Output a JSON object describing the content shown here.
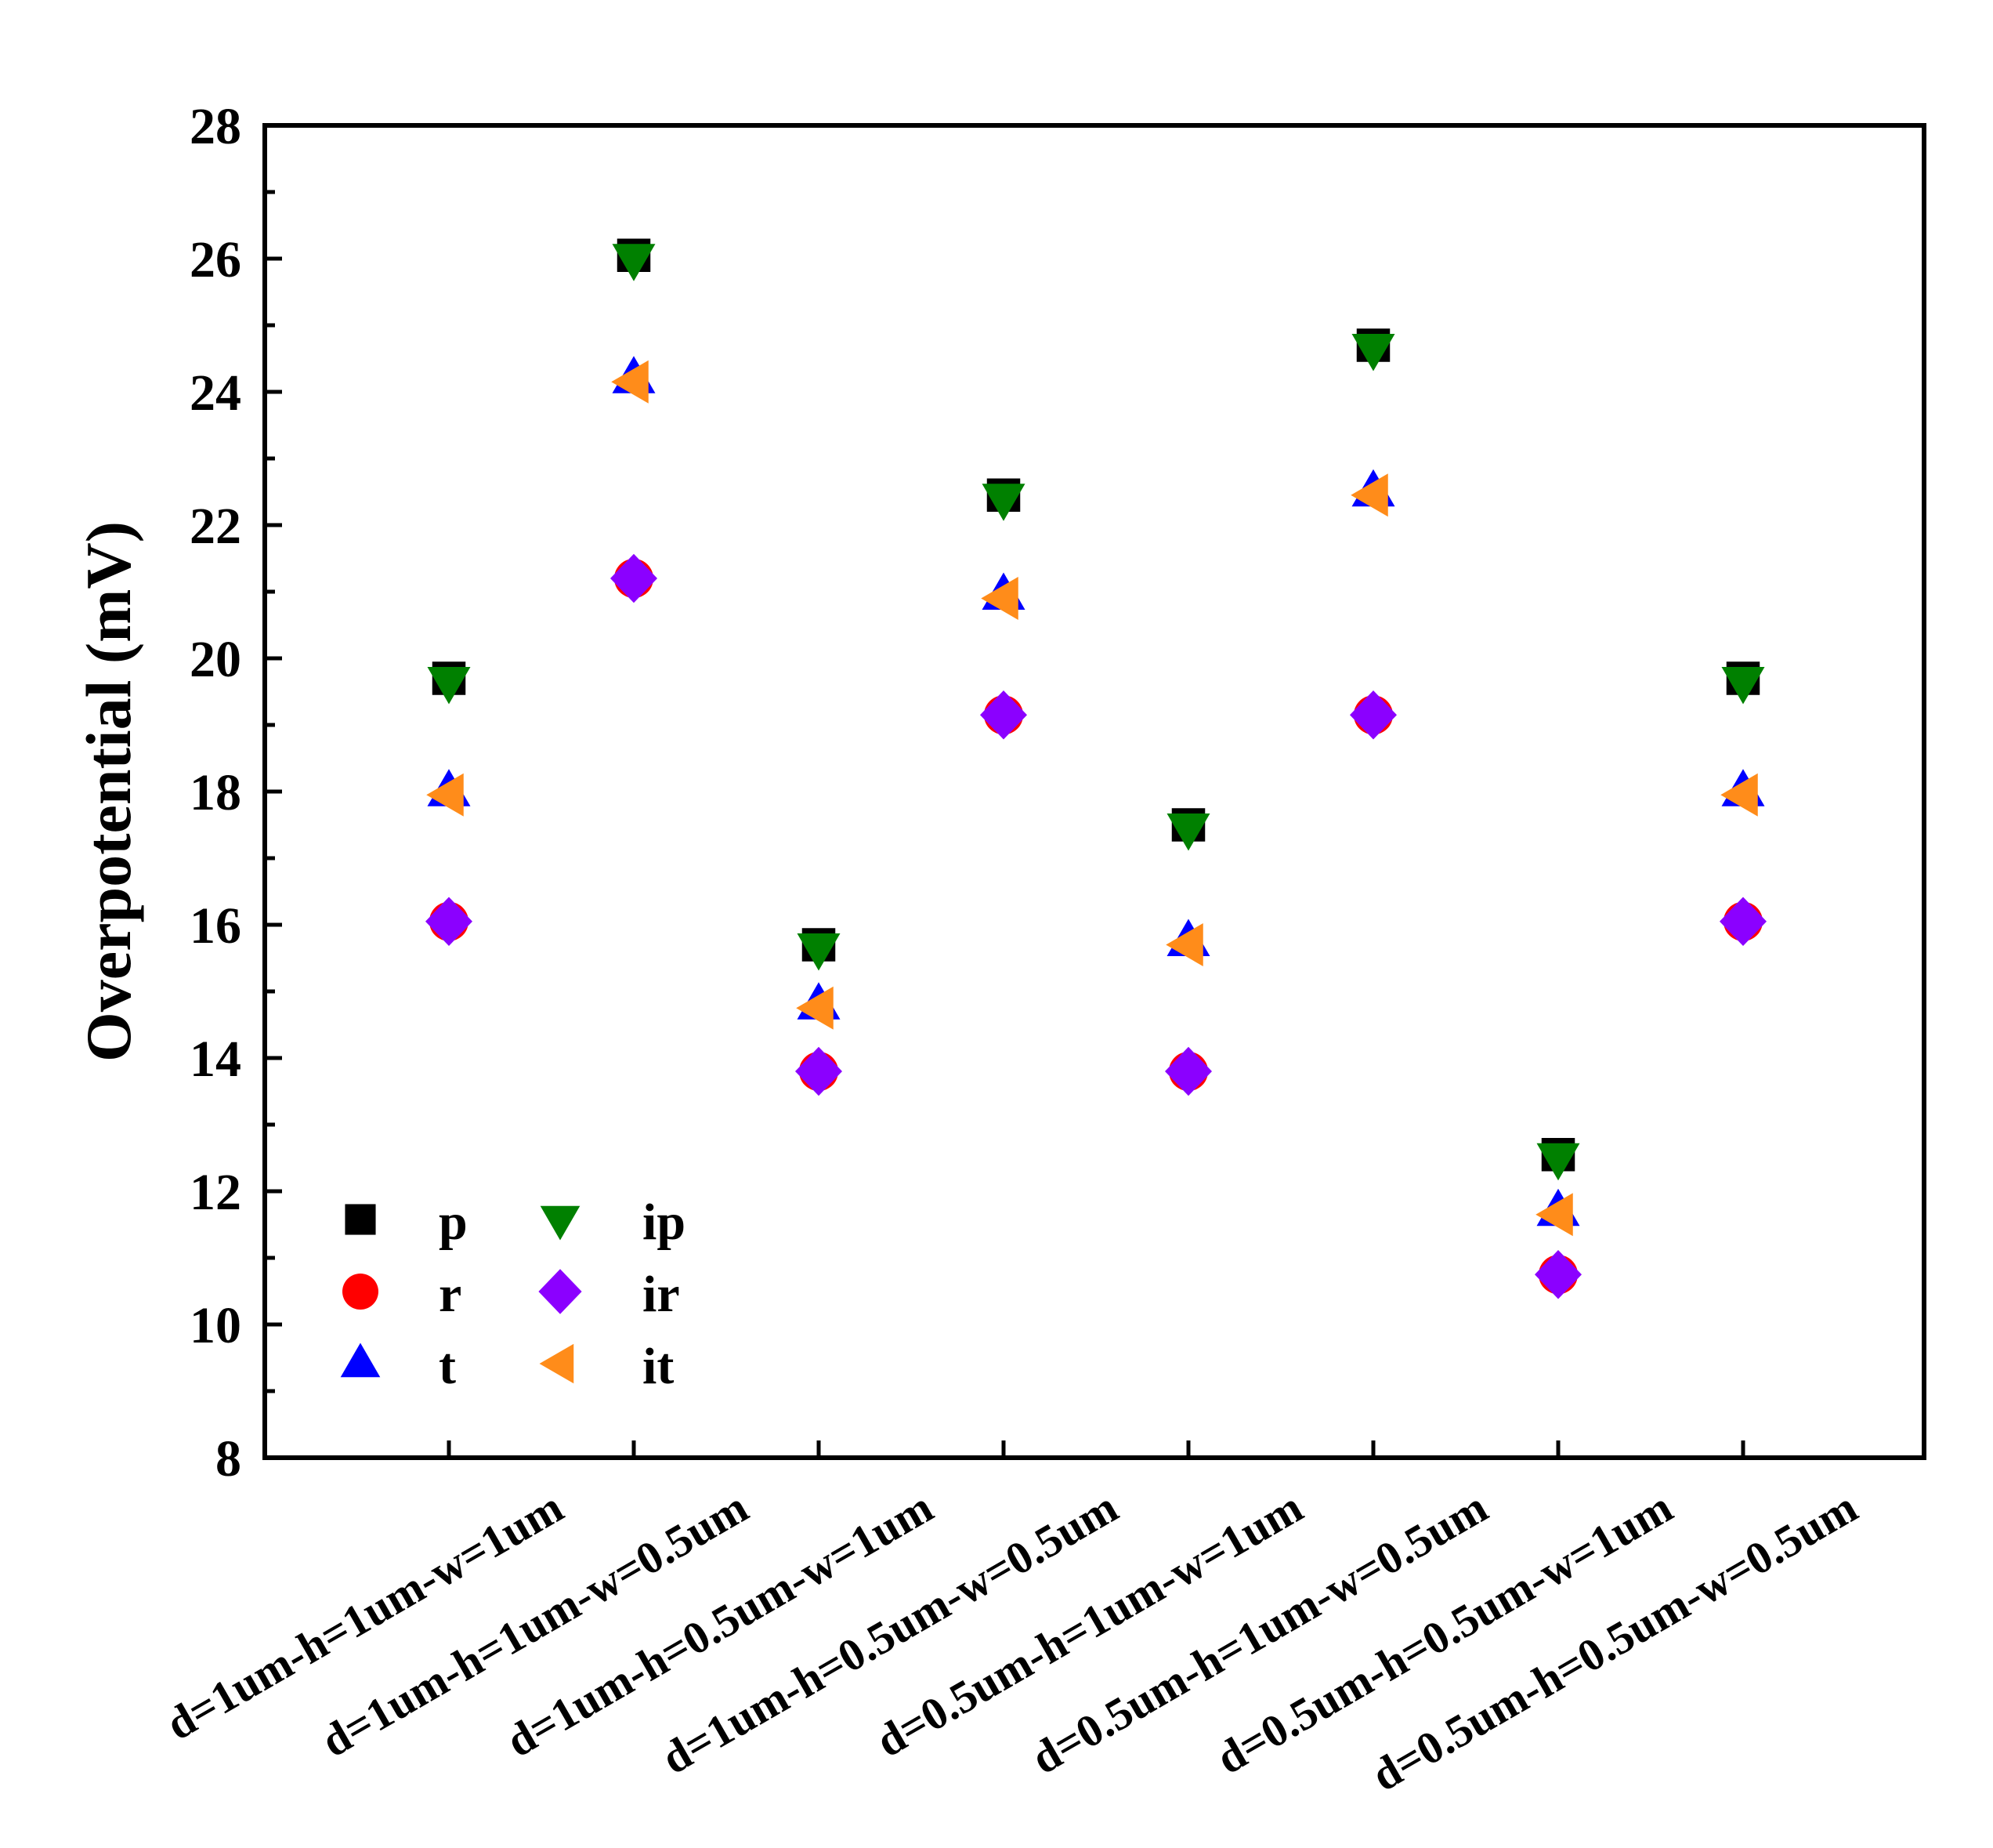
{
  "chart_data": {
    "type": "scatter",
    "title": "",
    "xlabel": "",
    "ylabel": "Overpotential (mV)",
    "ylim": [
      8,
      28
    ],
    "y_ticks": [
      8,
      10,
      12,
      14,
      16,
      18,
      20,
      22,
      24,
      26,
      28
    ],
    "categories": [
      "d=1um-h=1um-w=1um",
      "d=1um-h=1um-w=0.5um",
      "d=1um-h=0.5um-w=1um",
      "d=1um-h=0.5um-w=0.5um",
      "d=0.5um-h=1um-w=1um",
      "d=0.5um-h=1um-w=0.5um",
      "d=0.5um-h=0.5um-w=1um",
      "d=0.5um-h=0.5um-w=0.5um"
    ],
    "series": [
      {
        "name": "p",
        "marker": "square",
        "color": "#000000",
        "values": [
          19.7,
          26.05,
          15.7,
          22.45,
          17.5,
          24.7,
          12.55,
          19.7
        ]
      },
      {
        "name": "r",
        "marker": "circle",
        "color": "#ff0000",
        "values": [
          16.05,
          21.2,
          13.8,
          19.15,
          13.8,
          19.15,
          10.75,
          16.05
        ]
      },
      {
        "name": "t",
        "marker": "triangle-up",
        "color": "#0000ff",
        "values": [
          18.0,
          24.2,
          14.8,
          20.95,
          15.75,
          22.5,
          11.7,
          18.0
        ]
      },
      {
        "name": "ip",
        "marker": "triangle-down",
        "color": "#008000",
        "values": [
          19.65,
          26.0,
          15.65,
          22.4,
          17.45,
          24.65,
          12.5,
          19.65
        ]
      },
      {
        "name": "ir",
        "marker": "diamond",
        "color": "#8b00ff",
        "values": [
          16.05,
          21.2,
          13.8,
          19.15,
          13.8,
          19.15,
          10.75,
          16.05
        ]
      },
      {
        "name": "it",
        "marker": "triangle-left",
        "color": "#ff8c1a",
        "values": [
          17.95,
          24.15,
          14.75,
          20.9,
          15.7,
          22.45,
          11.65,
          17.95
        ]
      }
    ],
    "legend": {
      "placement": "bottom-left",
      "columns": 2,
      "entries": [
        "p",
        "r",
        "t",
        "ip",
        "ir",
        "it"
      ]
    },
    "grid": false
  }
}
